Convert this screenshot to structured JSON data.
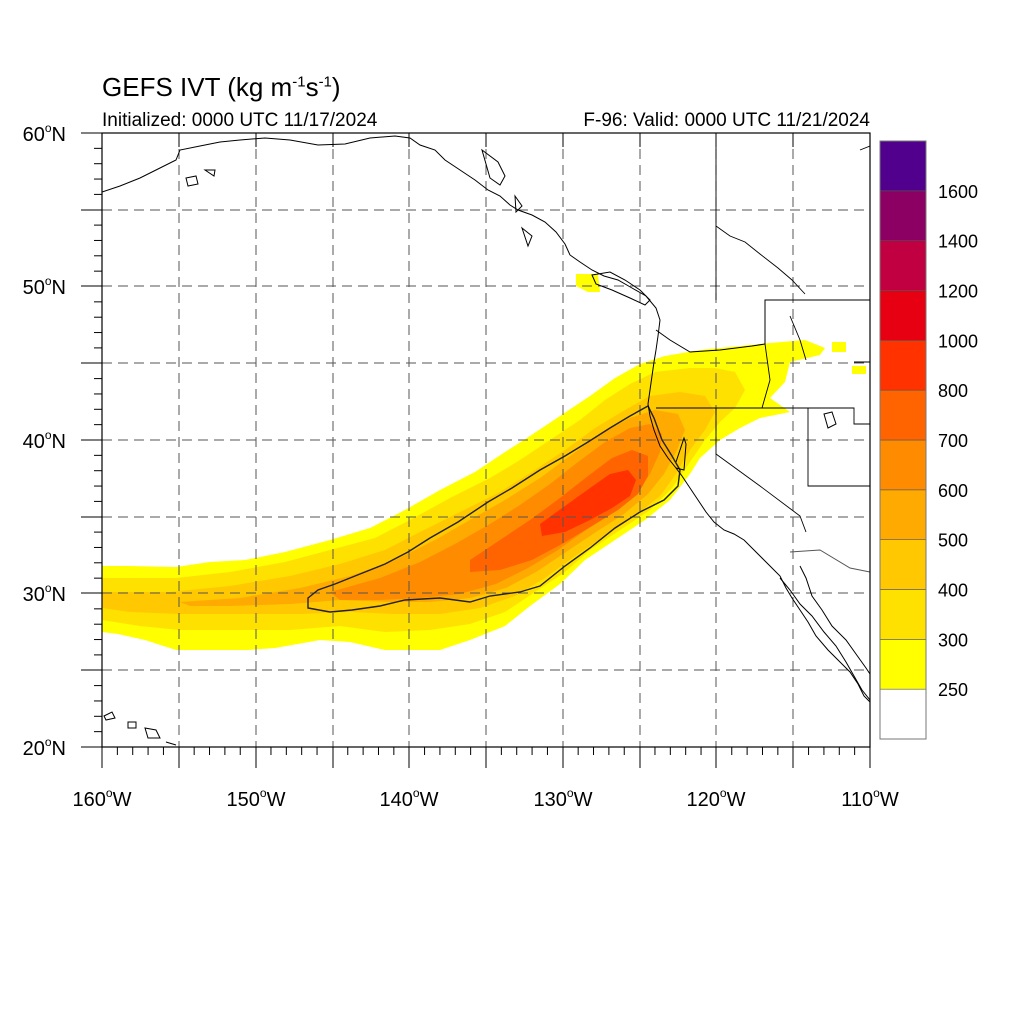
{
  "header": {
    "title_prefix": "GEFS IVT (kg m",
    "title_exp1": "-1",
    "title_mid": "s",
    "title_exp2": "-1",
    "title_suffix": ")",
    "initialized": "Initialized: 0000 UTC 11/17/2024",
    "valid": "F-96: Valid: 0000 UTC 11/21/2024"
  },
  "map": {
    "lon_range": [
      -160,
      -110
    ],
    "lat_range": [
      20,
      60
    ],
    "lon_ticks": [
      {
        "value": -160,
        "label": "160",
        "hemi": "W"
      },
      {
        "value": -150,
        "label": "150",
        "hemi": "W"
      },
      {
        "value": -140,
        "label": "140",
        "hemi": "W"
      },
      {
        "value": -130,
        "label": "130",
        "hemi": "W"
      },
      {
        "value": -120,
        "label": "120",
        "hemi": "W"
      },
      {
        "value": -110,
        "label": "110",
        "hemi": "W"
      }
    ],
    "lat_ticks": [
      {
        "value": 60,
        "label": "60",
        "hemi": "N"
      },
      {
        "value": 50,
        "label": "50",
        "hemi": "N"
      },
      {
        "value": 40,
        "label": "40",
        "hemi": "N"
      },
      {
        "value": 30,
        "label": "30",
        "hemi": "N"
      },
      {
        "value": 20,
        "label": "20",
        "hemi": "N"
      }
    ],
    "grid": "dashed every 5 degrees",
    "coastline_color": "#000000",
    "ivt_field": {
      "description": "atmospheric river plume from ~28N 160W to northern California coast",
      "contour_level": 600
    }
  },
  "colorbar": {
    "labels": [
      "250",
      "300",
      "400",
      "500",
      "600",
      "700",
      "800",
      "1000",
      "1200",
      "1400",
      "1600"
    ],
    "colors": [
      "#ffffff",
      "#ffff00",
      "#ffe100",
      "#ffc800",
      "#ffaa00",
      "#ff8c00",
      "#ff6400",
      "#ff3200",
      "#e60012",
      "#c00040",
      "#8c0064",
      "#50008c"
    ]
  }
}
